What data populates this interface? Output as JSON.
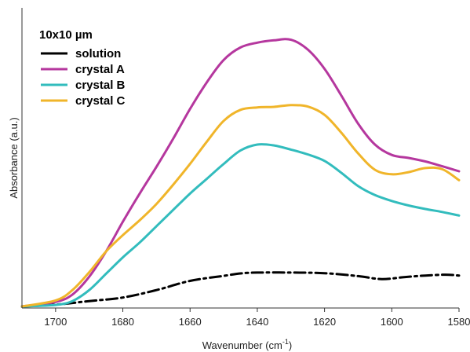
{
  "chart_data": {
    "type": "line",
    "title": "",
    "xlabel": "Wavenumber (cm",
    "xlabel_sup": "-1",
    "xlabel_close": ")",
    "ylabel": "Absorbance (a.u.)",
    "xlim": [
      1710,
      1580
    ],
    "ylim": [
      0,
      100
    ],
    "x_ticks": [
      1700,
      1680,
      1660,
      1640,
      1620,
      1600,
      1580
    ],
    "y_ticks_shown": false,
    "legend": {
      "title": "10x10 µm",
      "placement": "top-left",
      "entries": [
        "solution",
        "crystal A",
        "crystal B",
        "crystal C"
      ]
    },
    "series": [
      {
        "name": "solution",
        "color": "#000000",
        "style": "dash-dot",
        "points": [
          [
            1710,
            0
          ],
          [
            1700,
            0.6
          ],
          [
            1690,
            1.8
          ],
          [
            1680,
            3.0
          ],
          [
            1670,
            5.5
          ],
          [
            1660,
            8.6
          ],
          [
            1650,
            10.3
          ],
          [
            1645,
            11.1
          ],
          [
            1640,
            11.4
          ],
          [
            1630,
            11.4
          ],
          [
            1620,
            11.2
          ],
          [
            1610,
            10.2
          ],
          [
            1603,
            9.2
          ],
          [
            1596,
            9.9
          ],
          [
            1590,
            10.4
          ],
          [
            1584,
            10.7
          ],
          [
            1580,
            10.4
          ]
        ]
      },
      {
        "name": "crystal A",
        "color": "#b5379e",
        "style": "solid",
        "points": [
          [
            1710,
            0
          ],
          [
            1700,
            1.5
          ],
          [
            1695,
            4.0
          ],
          [
            1690,
            10.0
          ],
          [
            1685,
            18.5
          ],
          [
            1680,
            28.5
          ],
          [
            1675,
            38.0
          ],
          [
            1670,
            47.0
          ],
          [
            1665,
            56.5
          ],
          [
            1660,
            66.5
          ],
          [
            1655,
            75.5
          ],
          [
            1650,
            83.0
          ],
          [
            1645,
            87.2
          ],
          [
            1640,
            88.8
          ],
          [
            1635,
            89.6
          ],
          [
            1630,
            89.8
          ],
          [
            1625,
            86.5
          ],
          [
            1620,
            80.0
          ],
          [
            1615,
            71.0
          ],
          [
            1610,
            61.5
          ],
          [
            1605,
            54.5
          ],
          [
            1600,
            51.0
          ],
          [
            1595,
            50.0
          ],
          [
            1590,
            48.8
          ],
          [
            1585,
            47.2
          ],
          [
            1580,
            45.5
          ]
        ]
      },
      {
        "name": "crystal B",
        "color": "#32bcbd",
        "style": "solid",
        "points": [
          [
            1710,
            0
          ],
          [
            1700,
            0.5
          ],
          [
            1695,
            1.8
          ],
          [
            1690,
            5.5
          ],
          [
            1685,
            11.0
          ],
          [
            1680,
            16.5
          ],
          [
            1675,
            21.5
          ],
          [
            1670,
            27.0
          ],
          [
            1665,
            32.5
          ],
          [
            1660,
            38.0
          ],
          [
            1655,
            43.0
          ],
          [
            1650,
            48.0
          ],
          [
            1645,
            52.5
          ],
          [
            1640,
            54.5
          ],
          [
            1635,
            54.2
          ],
          [
            1630,
            52.8
          ],
          [
            1625,
            51.2
          ],
          [
            1620,
            49.0
          ],
          [
            1615,
            45.0
          ],
          [
            1610,
            40.5
          ],
          [
            1605,
            37.5
          ],
          [
            1600,
            35.5
          ],
          [
            1595,
            34.0
          ],
          [
            1590,
            32.8
          ],
          [
            1585,
            31.8
          ],
          [
            1580,
            30.6
          ]
        ]
      },
      {
        "name": "crystal C",
        "color": "#f0b52a",
        "style": "solid",
        "points": [
          [
            1710,
            0
          ],
          [
            1700,
            2.0
          ],
          [
            1695,
            5.5
          ],
          [
            1690,
            11.5
          ],
          [
            1685,
            18.5
          ],
          [
            1680,
            24.0
          ],
          [
            1675,
            29.0
          ],
          [
            1670,
            34.5
          ],
          [
            1665,
            41.0
          ],
          [
            1660,
            48.0
          ],
          [
            1655,
            55.5
          ],
          [
            1650,
            62.5
          ],
          [
            1645,
            66.2
          ],
          [
            1640,
            67.0
          ],
          [
            1635,
            67.2
          ],
          [
            1630,
            67.8
          ],
          [
            1625,
            67.3
          ],
          [
            1620,
            64.5
          ],
          [
            1615,
            58.5
          ],
          [
            1610,
            51.5
          ],
          [
            1605,
            46.0
          ],
          [
            1600,
            44.5
          ],
          [
            1595,
            45.2
          ],
          [
            1590,
            46.6
          ],
          [
            1585,
            46.2
          ],
          [
            1580,
            42.5
          ]
        ]
      }
    ]
  }
}
